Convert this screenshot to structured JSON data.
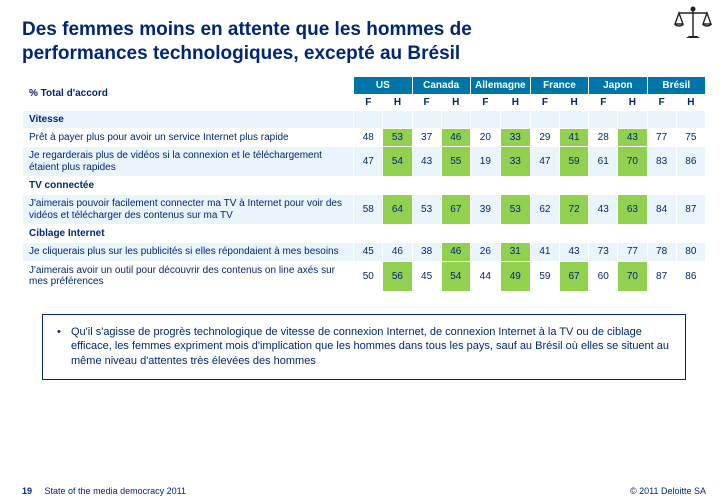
{
  "title": "Des femmes moins en attente que les hommes de performances technologiques, excepté au Brésil",
  "table": {
    "corner_label": "% Total d'accord",
    "header_bg": "#0076a8",
    "header_color": "#ffffff",
    "sub_labels": [
      "F",
      "H"
    ],
    "row_stripe_bg": "#eaf4fb",
    "text_color": "#002776",
    "highlight_bg": "#92d050",
    "highlight_diff": 5,
    "countries": [
      "US",
      "Canada",
      "Allemagne",
      "France",
      "Japon",
      "Brésil"
    ],
    "rows": [
      {
        "type": "section",
        "label": "Vitesse"
      },
      {
        "type": "data",
        "label": "Prêt à payer plus pour avoir un service Internet plus rapide",
        "values": [
          [
            48,
            53
          ],
          [
            37,
            46
          ],
          [
            20,
            33
          ],
          [
            29,
            41
          ],
          [
            28,
            43
          ],
          [
            77,
            75
          ]
        ]
      },
      {
        "type": "data",
        "label": "Je regarderais plus de vidéos si la connexion  et le téléchargement étaient plus rapides",
        "values": [
          [
            47,
            54
          ],
          [
            43,
            55
          ],
          [
            19,
            33
          ],
          [
            47,
            59
          ],
          [
            61,
            70
          ],
          [
            83,
            86
          ]
        ]
      },
      {
        "type": "section",
        "label": "TV connectée"
      },
      {
        "type": "data",
        "label": "J'aimerais pouvoir facilement connecter ma TV à Internet pour voir des vidéos et télécharger des contenus sur ma TV",
        "values": [
          [
            58,
            64
          ],
          [
            53,
            67
          ],
          [
            39,
            53
          ],
          [
            62,
            72
          ],
          [
            43,
            63
          ],
          [
            84,
            87
          ]
        ]
      },
      {
        "type": "section",
        "label": "Ciblage Internet"
      },
      {
        "type": "data",
        "label": "Je cliquerais plus sur les publicités si elles répondaient à mes besoins",
        "values": [
          [
            45,
            46
          ],
          [
            38,
            46
          ],
          [
            26,
            31
          ],
          [
            41,
            43
          ],
          [
            73,
            77
          ],
          [
            78,
            80
          ]
        ]
      },
      {
        "type": "data",
        "label": "J'aimerais avoir un outil pour découvrir des contenus on line axés sur mes préférences",
        "values": [
          [
            50,
            56
          ],
          [
            45,
            54
          ],
          [
            44,
            49
          ],
          [
            59,
            67
          ],
          [
            60,
            70
          ],
          [
            87,
            86
          ]
        ]
      }
    ]
  },
  "bullet": "Qu'il s'agisse de progrès technologique de vitesse de connexion Internet, de connexion Internet à la TV ou de ciblage efficace, les femmes expriment mois d'implication que les hommes dans tous les pays, sauf au Brésil où elles se situent au même niveau d'attentes très élevées des hommes",
  "footer": {
    "page": "19",
    "source": "State of the media democracy 2011",
    "copyright": "© 2011 Deloitte SA"
  },
  "colors": {
    "brand_text": "#002776",
    "green": "#92d050"
  }
}
